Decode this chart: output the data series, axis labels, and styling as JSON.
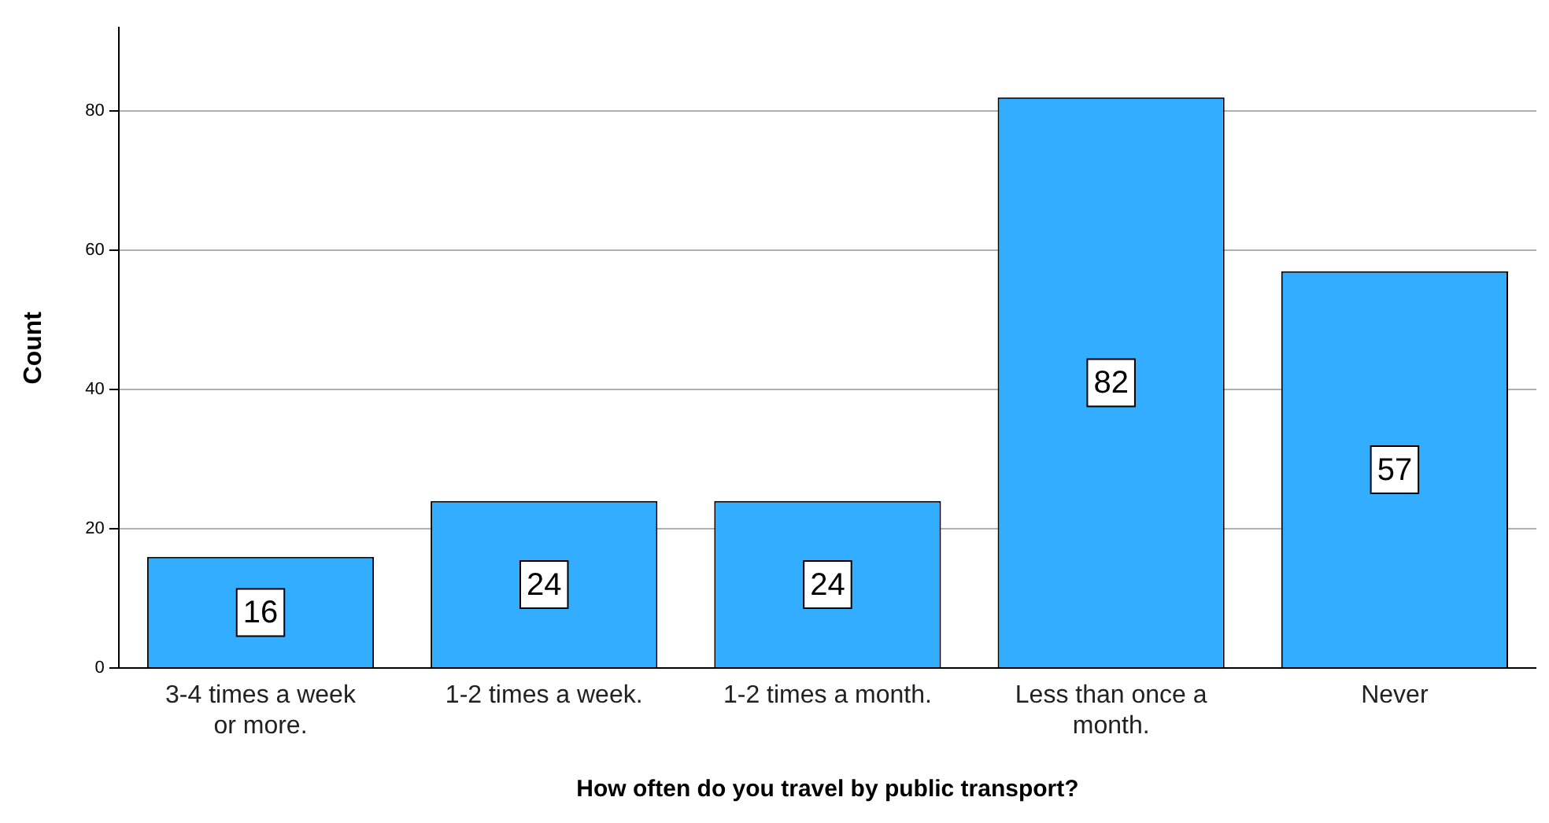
{
  "chart_data": {
    "type": "bar",
    "xlabel": "How often do you travel by public transport?",
    "ylabel": "Count",
    "categories": [
      "3-4 times a week or more.",
      "1-2 times a week.",
      "1-2 times a month.",
      "Less than once a month.",
      "Never"
    ],
    "values": [
      16,
      24,
      24,
      82,
      57
    ],
    "color": "#33adff",
    "ylim": [
      0,
      92
    ],
    "yticks": [
      0,
      20,
      40,
      60,
      80
    ],
    "grid": "y",
    "data_labels": true
  }
}
